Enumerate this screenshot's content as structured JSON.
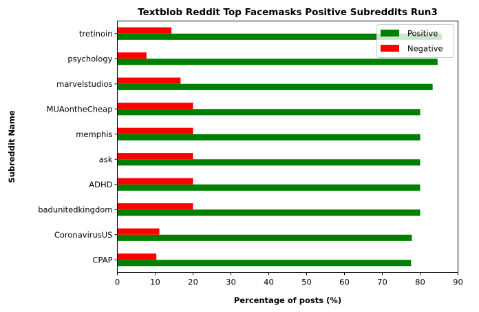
{
  "chart_data": {
    "type": "bar",
    "orientation": "horizontal",
    "title": "Textblob Reddit Top Facemasks Positive Subreddits Run3",
    "xlabel": "Percentage of posts (%)",
    "ylabel": "Subreddit Name",
    "xlim": [
      0,
      90
    ],
    "xticks": [
      0,
      10,
      20,
      30,
      40,
      50,
      60,
      70,
      80,
      90
    ],
    "grid": false,
    "legend_position": "top-right",
    "categories": [
      "CPAP",
      "CoronavirusUS",
      "badunitedkingdom",
      "ADHD",
      "ask",
      "memphis",
      "MUAontheCheap",
      "marvelstudios",
      "psychology",
      "tretinoin"
    ],
    "series": [
      {
        "name": "Positive",
        "color": "#008000",
        "values": [
          77.6,
          77.8,
          80.0,
          80.0,
          80.0,
          80.0,
          80.0,
          83.3,
          84.6,
          85.7
        ]
      },
      {
        "name": "Negative",
        "color": "#ff0000",
        "values": [
          10.3,
          11.1,
          20.0,
          20.0,
          20.0,
          20.0,
          20.0,
          16.7,
          7.7,
          14.3
        ]
      }
    ]
  }
}
